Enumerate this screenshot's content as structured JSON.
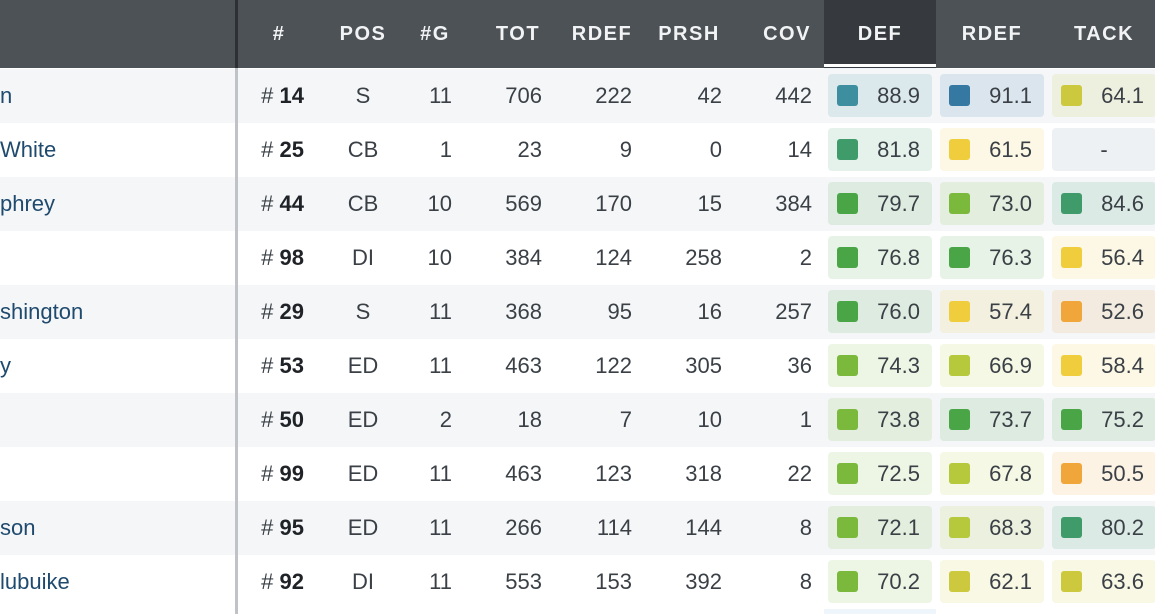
{
  "header": {
    "columns": {
      "jersey": "#",
      "pos": "POS",
      "games": "#G",
      "tot": "TOT",
      "rdef": "RDEF",
      "prsh": "PRSH",
      "cov": "COV",
      "def_grade": "DEF",
      "rdef_grade": "RDEF",
      "tack_grade": "TACK"
    },
    "active_column": "DEF"
  },
  "grade_colors": {
    "teal": "#3d8fa0",
    "blue": "#3579a3",
    "darkgreen": "#3f9c6a",
    "green": "#4aa547",
    "lightgreen": "#7ab93c",
    "yellowgreen": "#b6c83c",
    "olive": "#ccc93e",
    "yellow": "#f0cd3d",
    "orange": "#f0a63a"
  },
  "rows": [
    {
      "name": "n",
      "jersey_prefix": "#",
      "jersey": "14",
      "pos": "S",
      "games": "11",
      "tot": "706",
      "rdef": "222",
      "prsh": "42",
      "cov": "442",
      "def": {
        "value": "88.9",
        "color": "teal"
      },
      "rdef_grade": {
        "value": "91.1",
        "color": "blue"
      },
      "tack": {
        "value": "64.1",
        "color": "olive"
      }
    },
    {
      "name": "White",
      "jersey_prefix": "#",
      "jersey": "25",
      "pos": "CB",
      "games": "1",
      "tot": "23",
      "rdef": "9",
      "prsh": "0",
      "cov": "14",
      "def": {
        "value": "81.8",
        "color": "darkgreen"
      },
      "rdef_grade": {
        "value": "61.5",
        "color": "yellow"
      },
      "tack": {
        "value": "-",
        "color": null
      }
    },
    {
      "name": "phrey",
      "jersey_prefix": "#",
      "jersey": "44",
      "pos": "CB",
      "games": "10",
      "tot": "569",
      "rdef": "170",
      "prsh": "15",
      "cov": "384",
      "def": {
        "value": "79.7",
        "color": "green"
      },
      "rdef_grade": {
        "value": "73.0",
        "color": "lightgreen"
      },
      "tack": {
        "value": "84.6",
        "color": "darkgreen"
      }
    },
    {
      "name": "",
      "jersey_prefix": "#",
      "jersey": "98",
      "pos": "DI",
      "games": "10",
      "tot": "384",
      "rdef": "124",
      "prsh": "258",
      "cov": "2",
      "def": {
        "value": "76.8",
        "color": "green"
      },
      "rdef_grade": {
        "value": "76.3",
        "color": "green"
      },
      "tack": {
        "value": "56.4",
        "color": "yellow"
      }
    },
    {
      "name": "shington",
      "jersey_prefix": "#",
      "jersey": "29",
      "pos": "S",
      "games": "11",
      "tot": "368",
      "rdef": "95",
      "prsh": "16",
      "cov": "257",
      "def": {
        "value": "76.0",
        "color": "green"
      },
      "rdef_grade": {
        "value": "57.4",
        "color": "yellow"
      },
      "tack": {
        "value": "52.6",
        "color": "orange"
      }
    },
    {
      "name": "y",
      "jersey_prefix": "#",
      "jersey": "53",
      "pos": "ED",
      "games": "11",
      "tot": "463",
      "rdef": "122",
      "prsh": "305",
      "cov": "36",
      "def": {
        "value": "74.3",
        "color": "lightgreen"
      },
      "rdef_grade": {
        "value": "66.9",
        "color": "yellowgreen"
      },
      "tack": {
        "value": "58.4",
        "color": "yellow"
      }
    },
    {
      "name": "",
      "jersey_prefix": "#",
      "jersey": "50",
      "pos": "ED",
      "games": "2",
      "tot": "18",
      "rdef": "7",
      "prsh": "10",
      "cov": "1",
      "def": {
        "value": "73.8",
        "color": "lightgreen"
      },
      "rdef_grade": {
        "value": "73.7",
        "color": "green"
      },
      "tack": {
        "value": "75.2",
        "color": "green"
      }
    },
    {
      "name": "",
      "jersey_prefix": "#",
      "jersey": "99",
      "pos": "ED",
      "games": "11",
      "tot": "463",
      "rdef": "123",
      "prsh": "318",
      "cov": "22",
      "def": {
        "value": "72.5",
        "color": "lightgreen"
      },
      "rdef_grade": {
        "value": "67.8",
        "color": "yellowgreen"
      },
      "tack": {
        "value": "50.5",
        "color": "orange"
      }
    },
    {
      "name": "son",
      "jersey_prefix": "#",
      "jersey": "95",
      "pos": "ED",
      "games": "11",
      "tot": "266",
      "rdef": "114",
      "prsh": "144",
      "cov": "8",
      "def": {
        "value": "72.1",
        "color": "lightgreen"
      },
      "rdef_grade": {
        "value": "68.3",
        "color": "yellowgreen"
      },
      "tack": {
        "value": "80.2",
        "color": "darkgreen"
      }
    },
    {
      "name": "lubuike",
      "jersey_prefix": "#",
      "jersey": "92",
      "pos": "DI",
      "games": "11",
      "tot": "553",
      "rdef": "153",
      "prsh": "392",
      "cov": "8",
      "def": {
        "value": "70.2",
        "color": "lightgreen"
      },
      "rdef_grade": {
        "value": "62.1",
        "color": "olive"
      },
      "tack": {
        "value": "63.6",
        "color": "olive"
      }
    }
  ]
}
